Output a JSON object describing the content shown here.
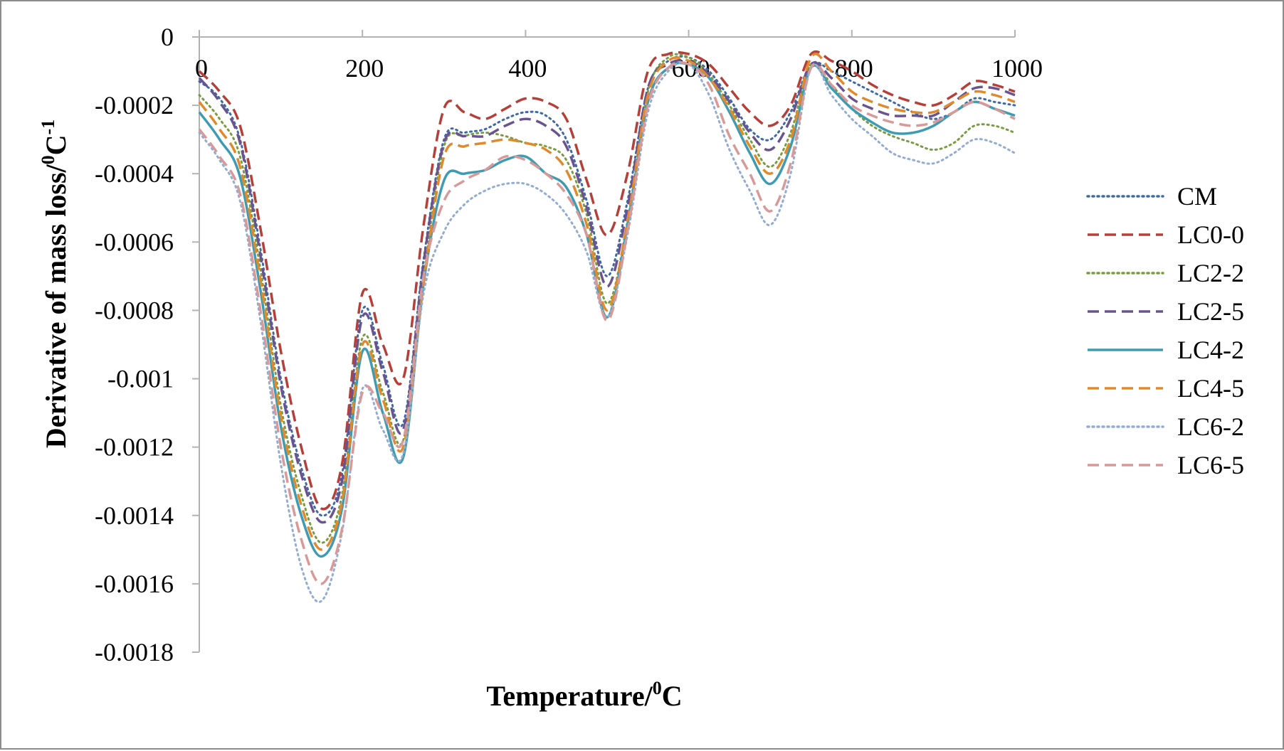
{
  "chart_data": {
    "type": "line",
    "xlabel": "Temperature/",
    "xlabel_sup": "0",
    "xlabel_end": "C",
    "ylabel": "Derivative of mass loss/",
    "ylabel_sup1": "0",
    "ylabel_mid": "C",
    "ylabel_sup2": "-1",
    "xlim": [
      0,
      1000
    ],
    "ylim": [
      -0.0018,
      0
    ],
    "x_ticks": [
      0,
      200,
      400,
      600,
      800,
      1000
    ],
    "x_tick_labels": [
      "0",
      "200",
      "400",
      "600",
      "800",
      "1000"
    ],
    "y_ticks": [
      0,
      -0.0002,
      -0.0004,
      -0.0006,
      -0.0008,
      -0.001,
      -0.0012,
      -0.0014,
      -0.0016,
      -0.0018
    ],
    "y_tick_labels": [
      "0",
      "-0.0002",
      "-0.0004",
      "-0.0006",
      "-0.0008",
      "-0.001",
      "-0.0012",
      "-0.0014",
      "-0.0016",
      "-0.0018"
    ],
    "grid": false,
    "legend_position": "right",
    "x": [
      0,
      25,
      50,
      75,
      100,
      125,
      150,
      175,
      200,
      225,
      250,
      275,
      300,
      325,
      350,
      375,
      400,
      425,
      450,
      475,
      500,
      525,
      550,
      575,
      600,
      625,
      650,
      675,
      700,
      725,
      750,
      775,
      800,
      825,
      850,
      875,
      900,
      925,
      950,
      975,
      1000
    ],
    "series": [
      {
        "name": "CM",
        "color": "#3f6aa6",
        "dash": "dotted",
        "values": [
          -0.00013,
          -0.00018,
          -0.0003,
          -0.00062,
          -0.001,
          -0.00126,
          -0.0014,
          -0.00128,
          -0.0008,
          -0.00096,
          -0.00113,
          -0.00065,
          -0.0003,
          -0.00028,
          -0.00027,
          -0.00024,
          -0.00022,
          -0.00023,
          -0.0003,
          -0.00048,
          -0.0007,
          -0.00048,
          -0.00015,
          -7e-05,
          -6e-05,
          -0.0001,
          -0.00018,
          -0.00027,
          -0.0003,
          -0.00022,
          -8e-05,
          -0.0001,
          -0.00013,
          -0.00016,
          -0.00019,
          -0.00022,
          -0.00024,
          -0.00022,
          -0.00018,
          -0.00019,
          -0.0002
        ]
      },
      {
        "name": "LC0-0",
        "color": "#b5403a",
        "dash": "dashed",
        "values": [
          -0.0001,
          -0.00016,
          -0.00026,
          -0.00056,
          -0.00092,
          -0.0012,
          -0.00138,
          -0.00125,
          -0.00075,
          -0.0009,
          -0.001,
          -0.00055,
          -0.00021,
          -0.00022,
          -0.00024,
          -0.00021,
          -0.00018,
          -0.00019,
          -0.00024,
          -0.00042,
          -0.00058,
          -0.0004,
          -0.0001,
          -5e-05,
          -5e-05,
          -8e-05,
          -0.00015,
          -0.00022,
          -0.00026,
          -0.0002,
          -5e-05,
          -7e-05,
          -0.0001,
          -0.00014,
          -0.00017,
          -0.00019,
          -0.0002,
          -0.00017,
          -0.00013,
          -0.00014,
          -0.00016
        ]
      },
      {
        "name": "LC2-2",
        "color": "#7a9c40",
        "dash": "dotted",
        "values": [
          -0.00017,
          -0.00024,
          -0.00035,
          -0.00068,
          -0.00108,
          -0.00134,
          -0.00148,
          -0.00134,
          -0.00088,
          -0.00104,
          -0.00118,
          -0.0007,
          -0.00032,
          -0.00029,
          -0.00028,
          -0.00029,
          -0.00031,
          -0.00032,
          -0.00036,
          -0.00052,
          -0.00078,
          -0.00054,
          -0.00016,
          -6e-05,
          -6e-05,
          -0.00011,
          -0.0002,
          -0.0003,
          -0.00038,
          -0.00028,
          -8e-05,
          -0.00014,
          -0.00021,
          -0.00026,
          -0.00029,
          -0.00031,
          -0.00033,
          -0.00031,
          -0.00026,
          -0.00026,
          -0.00028
        ]
      },
      {
        "name": "LC2-5",
        "color": "#6a5490",
        "dash": "dashed",
        "values": [
          -0.00012,
          -0.00019,
          -0.00031,
          -0.00064,
          -0.00102,
          -0.00128,
          -0.00142,
          -0.0013,
          -0.00082,
          -0.00098,
          -0.00115,
          -0.00066,
          -0.00031,
          -0.00029,
          -0.00029,
          -0.00026,
          -0.00024,
          -0.00026,
          -0.00032,
          -0.0005,
          -0.00073,
          -0.0005,
          -0.00015,
          -8e-05,
          -7e-05,
          -0.00011,
          -0.00019,
          -0.00028,
          -0.00033,
          -0.00024,
          -8e-05,
          -0.00012,
          -0.00018,
          -0.00021,
          -0.00023,
          -0.00023,
          -0.00023,
          -0.00019,
          -0.00015,
          -0.00015,
          -0.00017
        ]
      },
      {
        "name": "LC4-2",
        "color": "#3f9bb2",
        "dash": "solid",
        "values": [
          -0.00022,
          -0.0003,
          -0.00041,
          -0.00074,
          -0.00114,
          -0.0014,
          -0.00152,
          -0.00138,
          -0.00092,
          -0.0011,
          -0.00123,
          -0.00072,
          -0.00042,
          -0.0004,
          -0.00039,
          -0.00036,
          -0.00035,
          -0.0004,
          -0.00044,
          -0.00058,
          -0.00082,
          -0.00055,
          -0.00019,
          -9e-05,
          -8e-05,
          -0.00012,
          -0.00022,
          -0.00034,
          -0.00043,
          -0.00032,
          -9e-05,
          -0.00015,
          -0.00021,
          -0.00025,
          -0.00028,
          -0.00028,
          -0.00026,
          -0.00022,
          -0.00019,
          -0.00021,
          -0.00023
        ]
      },
      {
        "name": "LC4-5",
        "color": "#e08a2e",
        "dash": "dashed",
        "values": [
          -0.00019,
          -0.00027,
          -0.00038,
          -0.00071,
          -0.00111,
          -0.00137,
          -0.0015,
          -0.00136,
          -0.0009,
          -0.00106,
          -0.0012,
          -0.00072,
          -0.00035,
          -0.00032,
          -0.00031,
          -0.0003,
          -0.00031,
          -0.00033,
          -0.00039,
          -0.00055,
          -0.0008,
          -0.00054,
          -0.00017,
          -7e-05,
          -7e-05,
          -0.00012,
          -0.00021,
          -0.00032,
          -0.0004,
          -0.0003,
          -6e-05,
          -0.0001,
          -0.00016,
          -0.00019,
          -0.00021,
          -0.00022,
          -0.00022,
          -0.00019,
          -0.00016,
          -0.00017,
          -0.00019
        ]
      },
      {
        "name": "LC6-2",
        "color": "#94acd0",
        "dash": "dotted",
        "values": [
          -0.00028,
          -0.00036,
          -0.00048,
          -0.00083,
          -0.00125,
          -0.00155,
          -0.00165,
          -0.00145,
          -0.00103,
          -0.00115,
          -0.00122,
          -0.00075,
          -0.00057,
          -0.00049,
          -0.00045,
          -0.00043,
          -0.00043,
          -0.00046,
          -0.00052,
          -0.00063,
          -0.00082,
          -0.00058,
          -0.00022,
          -0.0001,
          -8e-05,
          -0.00017,
          -0.00033,
          -0.00045,
          -0.00055,
          -0.0004,
          -9e-05,
          -0.00017,
          -0.00024,
          -0.00029,
          -0.00034,
          -0.00036,
          -0.00037,
          -0.00034,
          -0.0003,
          -0.00031,
          -0.00034
        ]
      },
      {
        "name": "LC6-5",
        "color": "#d89a98",
        "dash": "dashed",
        "values": [
          -0.00027,
          -0.00035,
          -0.00046,
          -0.0008,
          -0.0012,
          -0.00147,
          -0.0016,
          -0.00144,
          -0.00104,
          -0.0011,
          -0.00118,
          -0.0007,
          -0.00048,
          -0.00042,
          -0.00039,
          -0.00035,
          -0.00036,
          -0.0004,
          -0.00046,
          -0.00058,
          -0.00083,
          -0.00057,
          -0.0002,
          -9e-05,
          -8e-05,
          -0.00014,
          -0.00029,
          -0.0004,
          -0.00051,
          -0.00037,
          -9e-05,
          -0.00014,
          -0.0002,
          -0.00023,
          -0.00025,
          -0.00026,
          -0.00025,
          -0.00022,
          -0.00019,
          -0.00021,
          -0.00024
        ]
      }
    ]
  }
}
